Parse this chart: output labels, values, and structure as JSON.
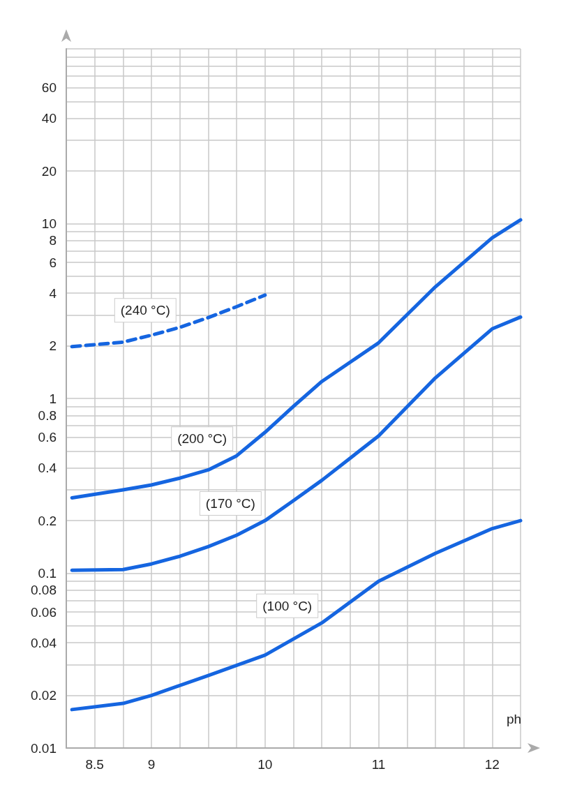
{
  "chart_data": {
    "type": "line",
    "xlabel": "ph",
    "log": "y",
    "grid": true,
    "marker": "none",
    "xlim": [
      8.25,
      12.25
    ],
    "xticks": [
      {
        "value": 8.25,
        "label": null
      },
      8.5,
      {
        "value": 8.75,
        "label": null
      },
      9,
      {
        "value": 9.25,
        "label": null
      },
      {
        "value": 9.5,
        "label": null
      },
      {
        "value": 9.75,
        "label": null
      },
      10,
      {
        "value": 10.25,
        "label": null
      },
      {
        "value": 10.5,
        "label": null
      },
      {
        "value": 10.75,
        "label": null
      },
      11,
      {
        "value": 11.25,
        "label": null
      },
      {
        "value": 11.5,
        "label": null
      },
      {
        "value": 11.75,
        "label": null
      },
      12,
      {
        "value": 12.25,
        "label": null
      }
    ],
    "ylim": [
      0.01,
      100
    ],
    "yticks": [
      0.01,
      0.02,
      {
        "value": 0.03,
        "label": null
      },
      0.04,
      {
        "value": 0.05,
        "label": null
      },
      0.06,
      {
        "value": 0.07,
        "label": null
      },
      0.08,
      {
        "value": 0.09,
        "label": null
      },
      0.1,
      0.2,
      {
        "value": 0.3,
        "label": null
      },
      0.4,
      {
        "value": 0.5,
        "label": null
      },
      0.6,
      {
        "value": 0.7,
        "label": null
      },
      0.8,
      {
        "value": 0.9,
        "label": null
      },
      1,
      2,
      {
        "value": 3,
        "label": null
      },
      4,
      {
        "value": 5,
        "label": null
      },
      6,
      {
        "value": 7,
        "label": null
      },
      8,
      {
        "value": 9,
        "label": null
      },
      10,
      20,
      {
        "value": 30,
        "label": null
      },
      40,
      {
        "value": 50,
        "label": null
      },
      60,
      {
        "value": 70,
        "label": null
      },
      {
        "value": 80,
        "label": null
      },
      {
        "value": 90,
        "label": null
      },
      {
        "value": 100,
        "label": null
      }
    ],
    "series": [
      {
        "color": "#1565e0",
        "line_style": "dashed",
        "x": [
          8.3,
          8.75,
          9,
          9.25,
          9.5,
          9.75,
          10
        ],
        "values": [
          1.98,
          2.1,
          2.3,
          2.55,
          2.9,
          3.35,
          3.9
        ]
      },
      {
        "color": "#1565e0",
        "line_style": "solid",
        "x": [
          8.3,
          8.75,
          9,
          9.25,
          9.5,
          9.75,
          10,
          10.25,
          10.5,
          11,
          11.5,
          12,
          12.25
        ],
        "values": [
          0.27,
          0.3,
          0.32,
          0.35,
          0.39,
          0.47,
          0.64,
          0.9,
          1.25,
          2.08,
          4.35,
          8.3,
          10.5
        ]
      },
      {
        "color": "#1565e0",
        "line_style": "solid",
        "x": [
          8.3,
          8.75,
          9,
          9.25,
          9.5,
          9.75,
          10,
          10.25,
          10.5,
          11,
          11.5,
          12,
          12.25
        ],
        "values": [
          0.104,
          0.105,
          0.113,
          0.125,
          0.142,
          0.165,
          0.2,
          0.26,
          0.34,
          0.61,
          1.31,
          2.5,
          2.92
        ]
      },
      {
        "color": "#1565e0",
        "line_style": "solid",
        "x": [
          8.3,
          8.75,
          9,
          9.5,
          10,
          10.5,
          11,
          11.5,
          12,
          12.25
        ],
        "values": [
          0.0166,
          0.018,
          0.02,
          0.026,
          0.034,
          0.052,
          0.09,
          0.13,
          0.18,
          0.2
        ]
      }
    ],
    "annotations": [
      {
        "text": "(240 °C)",
        "x": 9.25,
        "y": 2.55
      },
      {
        "text": "(200 °C)",
        "x": 9.75,
        "y": 0.47
      },
      {
        "text": "(170 °C)",
        "x": 10,
        "y": 0.2
      },
      {
        "text": "(100 °C)",
        "x": 10.5,
        "y": 0.052
      }
    ]
  }
}
